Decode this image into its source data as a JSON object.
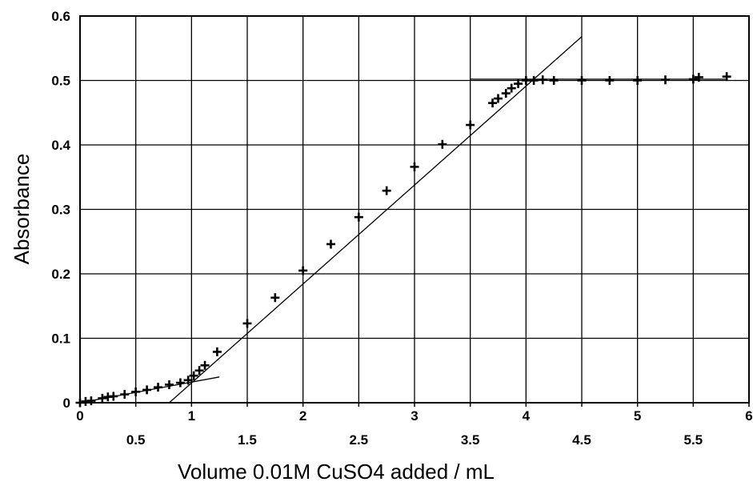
{
  "chart_data": {
    "type": "scatter",
    "xlabel": "Volume 0.01M CuSO4 added / mL",
    "ylabel": "Absorbance",
    "xlim": [
      0,
      6
    ],
    "ylim": [
      0,
      0.6
    ],
    "grid": true,
    "x_major_ticks": [
      "0",
      "1",
      "2",
      "3",
      "4",
      "5",
      "6"
    ],
    "x_minor_ticks": [
      "0.5",
      "1.5",
      "2.5",
      "3.5",
      "4.5",
      "5.5"
    ],
    "y_ticks": [
      "0",
      "0.1",
      "0.2",
      "0.3",
      "0.4",
      "0.5",
      "0.6"
    ],
    "series": [
      {
        "points": [
          [
            0.0,
            0.0
          ],
          [
            0.05,
            0.002
          ],
          [
            0.1,
            0.003
          ],
          [
            0.2,
            0.007
          ],
          [
            0.25,
            0.009
          ],
          [
            0.3,
            0.01
          ],
          [
            0.4,
            0.013
          ],
          [
            0.5,
            0.017
          ],
          [
            0.6,
            0.02
          ],
          [
            0.7,
            0.024
          ],
          [
            0.8,
            0.028
          ],
          [
            0.9,
            0.031
          ],
          [
            0.97,
            0.035
          ],
          [
            1.02,
            0.042
          ],
          [
            1.07,
            0.05
          ],
          [
            1.12,
            0.058
          ],
          [
            1.23,
            0.079
          ],
          [
            1.5,
            0.123
          ],
          [
            1.75,
            0.163
          ],
          [
            2.0,
            0.205
          ],
          [
            2.25,
            0.246
          ],
          [
            2.5,
            0.288
          ],
          [
            2.75,
            0.329
          ],
          [
            3.0,
            0.366
          ],
          [
            3.25,
            0.401
          ],
          [
            3.5,
            0.431
          ],
          [
            3.7,
            0.465
          ],
          [
            3.75,
            0.472
          ],
          [
            3.82,
            0.48
          ],
          [
            3.87,
            0.488
          ],
          [
            3.93,
            0.495
          ],
          [
            4.0,
            0.5
          ],
          [
            4.07,
            0.5
          ],
          [
            4.15,
            0.501
          ],
          [
            4.25,
            0.5
          ],
          [
            4.5,
            0.5
          ],
          [
            4.75,
            0.5
          ],
          [
            5.0,
            0.5
          ],
          [
            5.25,
            0.501
          ],
          [
            5.5,
            0.502
          ],
          [
            5.55,
            0.505
          ],
          [
            5.8,
            0.506
          ]
        ]
      }
    ],
    "fit_lines": [
      {
        "from": [
          0.0,
          0.0
        ],
        "to": [
          1.25,
          0.04
        ]
      },
      {
        "from": [
          0.8,
          0.0
        ],
        "to": [
          4.5,
          0.568
        ]
      },
      {
        "from": [
          3.5,
          0.502
        ],
        "to": [
          5.8,
          0.502
        ]
      }
    ]
  }
}
